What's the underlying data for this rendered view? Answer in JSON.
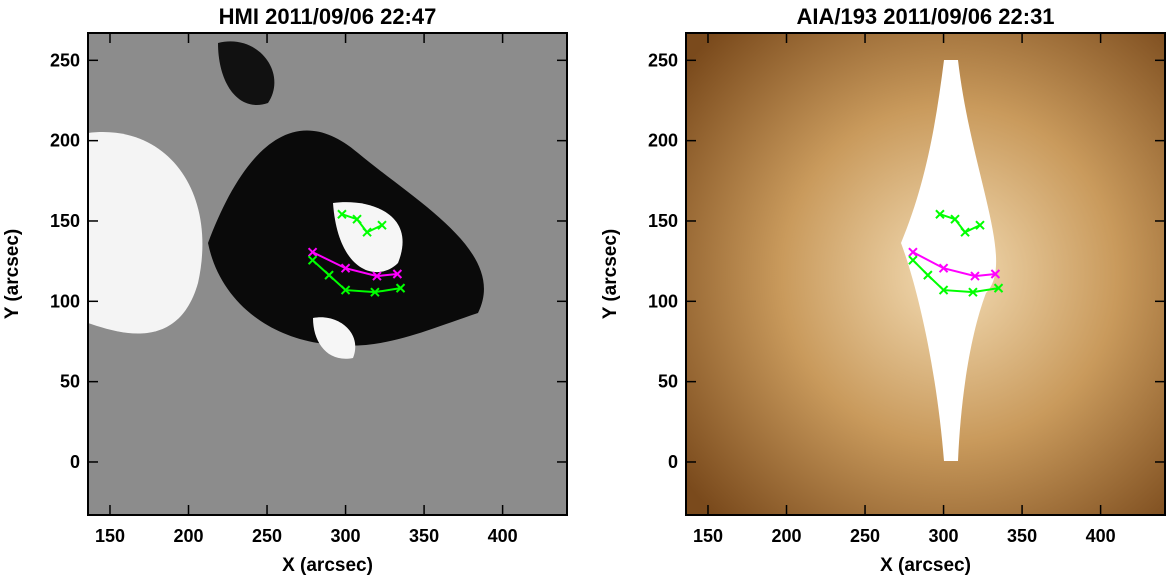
{
  "chart_data": [
    {
      "type": "line",
      "title": "HMI 2011/09/06 22:47",
      "xlabel": "X (arcsec)",
      "ylabel": "Y (arcsec)",
      "background": "magnetogram",
      "xlim": [
        136,
        441
      ],
      "ylim": [
        -33,
        267
      ],
      "xticks": [
        150,
        200,
        250,
        300,
        350,
        400
      ],
      "yticks": [
        0,
        50,
        100,
        150,
        200,
        250
      ],
      "series": [
        {
          "color": "#ff00ff",
          "x": [
            279,
            300,
            320,
            333
          ],
          "values": [
            130.6,
            120.6,
            115.7,
            117
          ]
        },
        {
          "color": "#00ff00",
          "x": [
            279,
            289.5,
            300,
            318.7,
            335
          ],
          "values": [
            125.6,
            116.3,
            107,
            105.7,
            108.2
          ]
        },
        {
          "color": "#00ff00",
          "x": [
            297.7,
            307.3,
            313.7,
            323.2
          ],
          "values": [
            154.2,
            151.1,
            143,
            147.4
          ]
        }
      ]
    },
    {
      "type": "line",
      "title": "AIA/193 2011/09/06 22:31",
      "xlabel": "X (arcsec)",
      "ylabel": "Y (arcsec)",
      "background": "euv",
      "xlim": [
        136,
        441
      ],
      "ylim": [
        -33,
        267
      ],
      "xticks": [
        150,
        200,
        250,
        300,
        350,
        400
      ],
      "yticks": [
        0,
        50,
        100,
        150,
        200,
        250
      ],
      "series": [
        {
          "color": "#ff00ff",
          "x": [
            280.5,
            300,
            320,
            333
          ],
          "values": [
            130.6,
            120.6,
            115.7,
            117
          ]
        },
        {
          "color": "#00ff00",
          "x": [
            280.5,
            290,
            300,
            318.7,
            335
          ],
          "values": [
            125.6,
            116.3,
            107,
            105.7,
            108.2
          ]
        },
        {
          "color": "#00ff00",
          "x": [
            297.7,
            307.3,
            313.7,
            323.2
          ],
          "values": [
            154.2,
            151.1,
            143,
            147.4
          ]
        }
      ]
    }
  ]
}
